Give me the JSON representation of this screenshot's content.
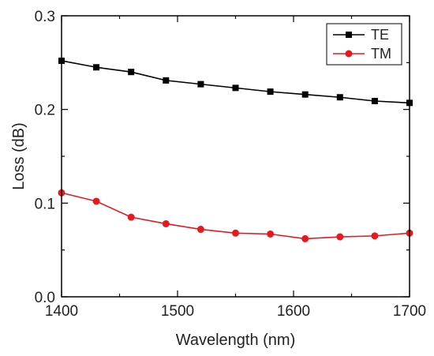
{
  "chart_data": {
    "type": "line",
    "xlabel": "Wavelength (nm)",
    "ylabel": "Loss (dB)",
    "xlim": [
      1400,
      1700
    ],
    "ylim": [
      0.0,
      0.3
    ],
    "xticks": [
      1400,
      1500,
      1600,
      1700
    ],
    "xtick_labels": [
      "1400",
      "1500",
      "1600",
      "1700"
    ],
    "yticks": [
      0.0,
      0.1,
      0.2,
      0.3
    ],
    "ytick_labels": [
      "0.0",
      "0.1",
      "0.2",
      "0.3"
    ],
    "grid": false,
    "legend_position": "top-right",
    "x": [
      1400,
      1430,
      1460,
      1490,
      1520,
      1550,
      1580,
      1610,
      1640,
      1670,
      1700
    ],
    "series": [
      {
        "name": "TE",
        "color": "#000000",
        "marker": "square",
        "values": [
          0.252,
          0.245,
          0.24,
          0.231,
          0.227,
          0.223,
          0.219,
          0.216,
          0.213,
          0.209,
          0.207
        ]
      },
      {
        "name": "TM",
        "color": "#e8191e",
        "marker": "circle",
        "values": [
          0.111,
          0.102,
          0.085,
          0.078,
          0.072,
          0.068,
          0.067,
          0.062,
          0.064,
          0.065,
          0.068
        ]
      }
    ]
  }
}
